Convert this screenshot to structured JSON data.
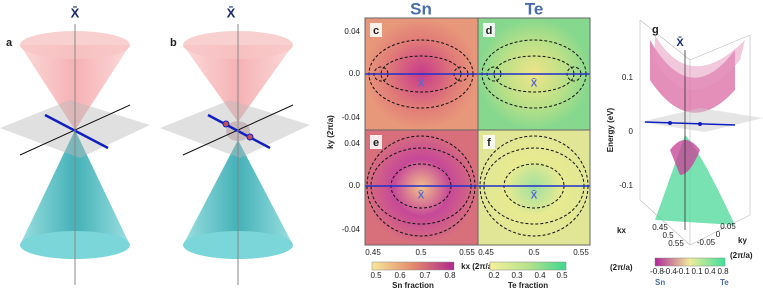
{
  "panels": {
    "a": {
      "label": "a",
      "point": "X̄"
    },
    "b": {
      "label": "b",
      "point": "X̄"
    },
    "maps": {
      "titles": [
        "Sn",
        "Te"
      ],
      "labels": [
        "c",
        "d",
        "e",
        "f"
      ],
      "point": "X̄",
      "yticks": [
        "0.04",
        "0.0",
        "-0.04"
      ],
      "xticks": [
        "0.45",
        "0.5",
        "0.55"
      ],
      "ylabel": "ky (2π/a)",
      "xlabel": "kx (2π/a)",
      "colorbars": [
        {
          "title": "Sn fraction",
          "ticks": [
            "0.5",
            "0.6",
            "0.7",
            "0.8"
          ]
        },
        {
          "title": "Te fraction",
          "ticks": [
            "0.2",
            "0.3",
            "0.4",
            "0.5"
          ]
        }
      ]
    },
    "g": {
      "label": "g",
      "point": "X̄",
      "zticks": [
        "0.1",
        "0",
        "-0.1"
      ],
      "zlabel": "Energy (eV)",
      "xlabel": "kx",
      "xunit": "(2π/a)",
      "xticks": [
        "0.45",
        "0.5",
        "0.55"
      ],
      "ylabel": "ky",
      "yunit": "(2π/a)",
      "yticks": [
        "0.05",
        "0",
        "-0.05"
      ],
      "cticks": [
        "-0.8",
        "-0.4",
        "-0.1",
        "0.1",
        "0.4",
        "0.8"
      ],
      "cends": [
        "Sn",
        "Te"
      ]
    }
  }
}
